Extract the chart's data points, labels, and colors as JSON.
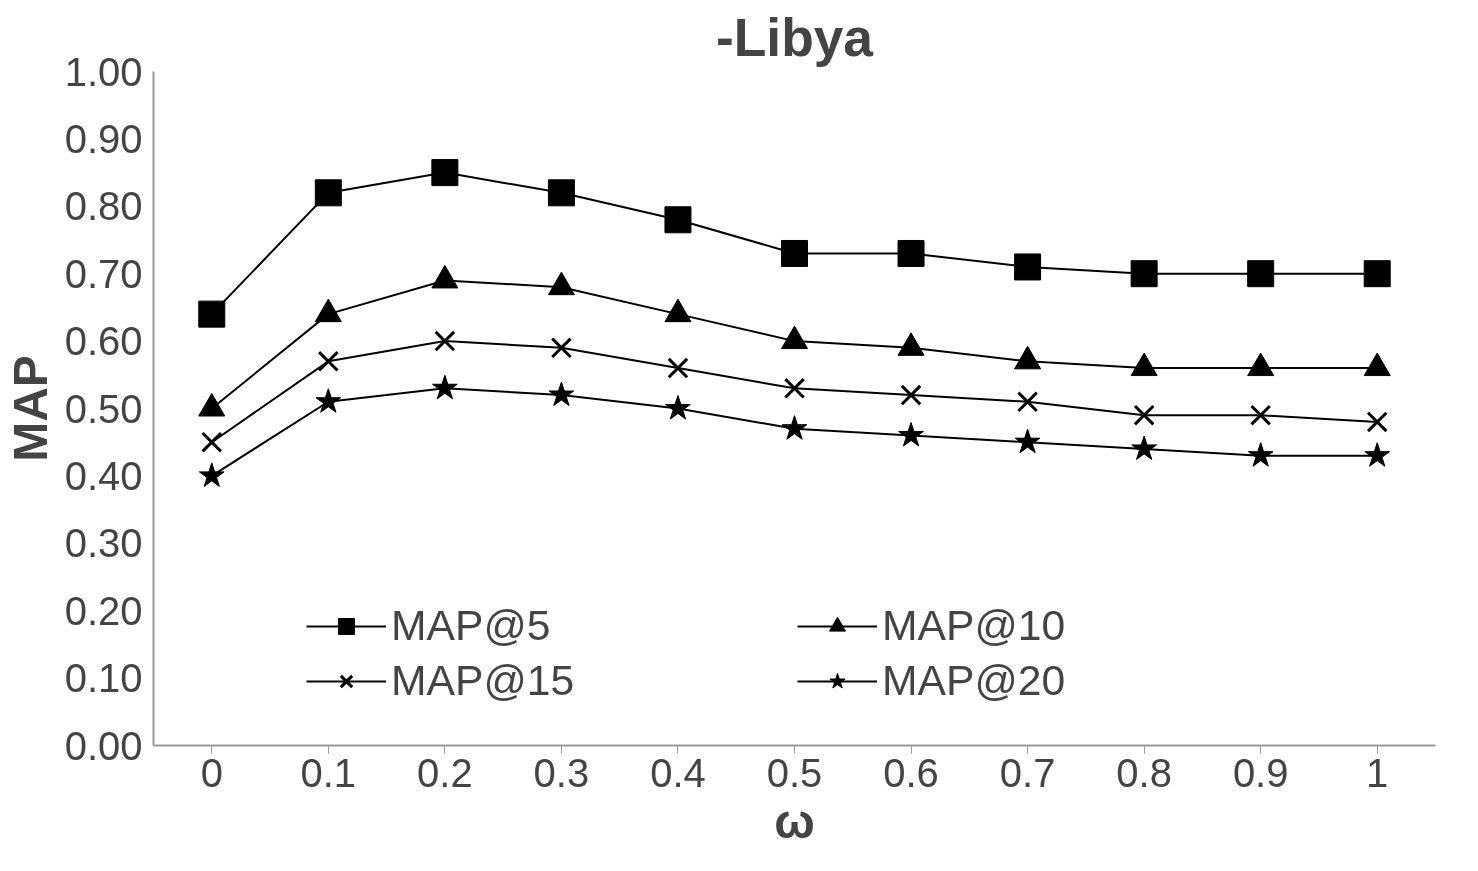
{
  "chart_data": {
    "type": "line",
    "title": "-Libya",
    "xlabel": "ω",
    "ylabel": "MAP",
    "x": [
      0,
      0.1,
      0.2,
      0.3,
      0.4,
      0.5,
      0.6,
      0.7,
      0.8,
      0.9,
      1
    ],
    "xlim": [
      -0.05,
      1.05
    ],
    "xticks": [
      0,
      0.1,
      0.2,
      0.3,
      0.4,
      0.5,
      0.6,
      0.7,
      0.8,
      0.9,
      1
    ],
    "ylim": [
      0,
      1
    ],
    "yticks": [
      {
        "value": 0,
        "label": "0.00"
      },
      {
        "value": 0.1,
        "label": "0.10"
      },
      {
        "value": 0.2,
        "label": "0.20"
      },
      {
        "value": 0.3,
        "label": "0.30"
      },
      {
        "value": 0.4,
        "label": "0.40"
      },
      {
        "value": 0.5,
        "label": "0.50"
      },
      {
        "value": 0.6,
        "label": "0.60"
      },
      {
        "value": 0.7,
        "label": "0.70"
      },
      {
        "value": 0.8,
        "label": "0.80"
      },
      {
        "value": 0.9,
        "label": "0.90"
      },
      {
        "value": 1,
        "label": "1.00"
      }
    ],
    "grid": false,
    "legend": "bottom",
    "line_style": "solid",
    "series": [
      {
        "name": "MAP@5",
        "color": "#000000",
        "marker": "square",
        "values": [
          0.64,
          0.82,
          0.85,
          0.82,
          0.78,
          0.73,
          0.73,
          0.71,
          0.7,
          0.7,
          0.7
        ]
      },
      {
        "name": "MAP@10",
        "color": "#000000",
        "marker": "triangle",
        "values": [
          0.5,
          0.64,
          0.69,
          0.68,
          0.64,
          0.6,
          0.59,
          0.57,
          0.56,
          0.56,
          0.56
        ]
      },
      {
        "name": "MAP@15",
        "color": "#000000",
        "marker": "cross",
        "values": [
          0.45,
          0.57,
          0.6,
          0.59,
          0.56,
          0.53,
          0.52,
          0.51,
          0.49,
          0.49,
          0.48
        ]
      },
      {
        "name": "MAP@20",
        "color": "#000000",
        "marker": "star",
        "values": [
          0.4,
          0.51,
          0.53,
          0.52,
          0.5,
          0.47,
          0.46,
          0.45,
          0.44,
          0.43,
          0.43
        ]
      }
    ]
  }
}
